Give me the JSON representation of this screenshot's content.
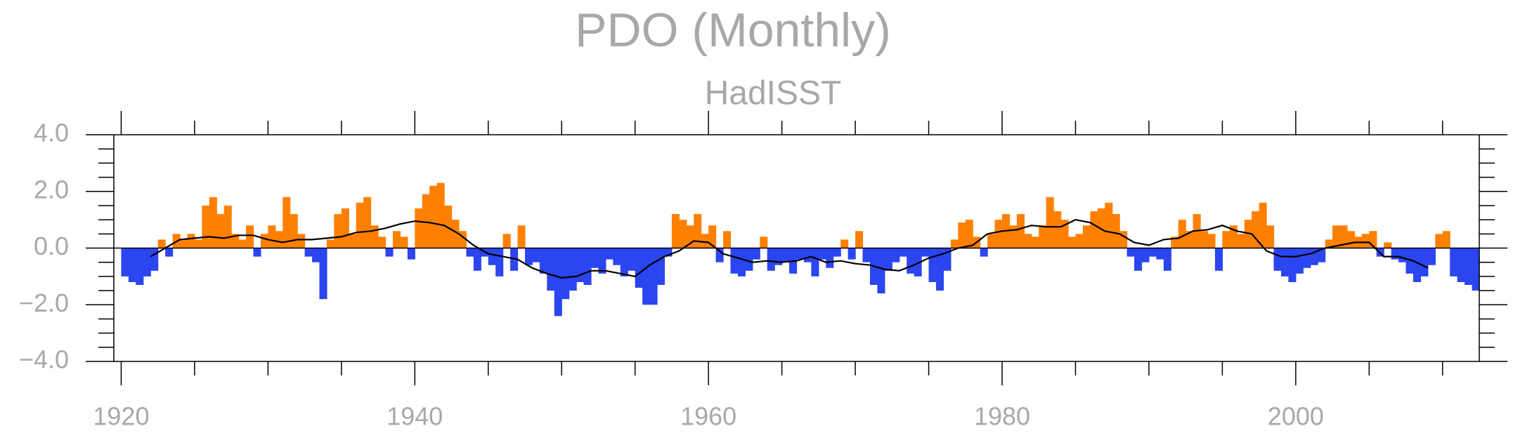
{
  "chart_data": {
    "type": "bar",
    "title": "PDO (Monthly)",
    "subtitle": "HadISST",
    "positive_color": "#ff8000",
    "negative_color": "#2b45f0",
    "xlim": [
      1919.5,
      2012.5
    ],
    "ylim": [
      -4,
      4
    ],
    "xticks": [
      1920,
      1940,
      1960,
      1980,
      2000
    ],
    "xticks_minor": [
      1925,
      1930,
      1935,
      1945,
      1950,
      1955,
      1965,
      1970,
      1975,
      1985,
      1990,
      1995,
      2005,
      2010
    ],
    "yticks": [
      {
        "value": 4,
        "label": "4.0"
      },
      {
        "value": 2,
        "label": "2.0"
      },
      {
        "value": 0,
        "label": "0.0"
      },
      {
        "value": -2,
        "label": "−2.0"
      },
      {
        "value": -4,
        "label": "−4.0"
      }
    ],
    "yticks_minor": [
      -3.5,
      -3,
      -2.5,
      -1.5,
      -1,
      -0.5,
      0.5,
      1,
      1.5,
      2.5,
      3,
      3.5
    ],
    "x": [
      1920,
      1920.5,
      1921,
      1921.5,
      1922,
      1922.5,
      1923,
      1923.5,
      1924,
      1924.5,
      1925,
      1925.5,
      1926,
      1926.5,
      1927,
      1927.5,
      1928,
      1928.5,
      1929,
      1929.5,
      1930,
      1930.5,
      1931,
      1931.5,
      1932,
      1932.5,
      1933,
      1933.5,
      1934,
      1934.5,
      1935,
      1935.5,
      1936,
      1936.5,
      1937,
      1937.5,
      1938,
      1938.5,
      1939,
      1939.5,
      1940,
      1940.5,
      1941,
      1941.5,
      1942,
      1942.5,
      1943,
      1943.5,
      1944,
      1944.5,
      1945,
      1945.5,
      1946,
      1946.5,
      1947,
      1947.5,
      1948,
      1948.5,
      1949,
      1949.5,
      1950,
      1950.5,
      1951,
      1951.5,
      1952,
      1952.5,
      1953,
      1953.5,
      1954,
      1954.5,
      1955,
      1955.5,
      1956,
      1956.5,
      1957,
      1957.5,
      1958,
      1958.5,
      1959,
      1959.5,
      1960,
      1960.5,
      1961,
      1961.5,
      1962,
      1962.5,
      1963,
      1963.5,
      1964,
      1964.5,
      1965,
      1965.5,
      1966,
      1966.5,
      1967,
      1967.5,
      1968,
      1968.5,
      1969,
      1969.5,
      1970,
      1970.5,
      1971,
      1971.5,
      1972,
      1972.5,
      1973,
      1973.5,
      1974,
      1974.5,
      1975,
      1975.5,
      1976,
      1976.5,
      1977,
      1977.5,
      1978,
      1978.5,
      1979,
      1979.5,
      1980,
      1980.5,
      1981,
      1981.5,
      1982,
      1982.5,
      1983,
      1983.5,
      1984,
      1984.5,
      1985,
      1985.5,
      1986,
      1986.5,
      1987,
      1987.5,
      1988,
      1988.5,
      1989,
      1989.5,
      1990,
      1990.5,
      1991,
      1991.5,
      1992,
      1992.5,
      1993,
      1993.5,
      1994,
      1994.5,
      1995,
      1995.5,
      1996,
      1996.5,
      1997,
      1997.5,
      1998,
      1998.5,
      1999,
      1999.5,
      2000,
      2000.5,
      2001,
      2001.5,
      2002,
      2002.5,
      2003,
      2003.5,
      2004,
      2004.5,
      2005,
      2005.5,
      2006,
      2006.5,
      2007,
      2007.5,
      2008,
      2008.5,
      2009,
      2009.5,
      2010,
      2010.5,
      2011,
      2011.5,
      2012
    ],
    "values": [
      -1.0,
      -1.2,
      -1.3,
      -1.0,
      -0.8,
      0.3,
      -0.3,
      0.5,
      0.3,
      0.5,
      0.3,
      1.5,
      1.8,
      1.2,
      1.5,
      0.5,
      0.3,
      0.8,
      -0.3,
      0.5,
      0.8,
      0.6,
      1.8,
      1.2,
      0.5,
      -0.3,
      -0.5,
      -1.8,
      0.3,
      1.2,
      1.4,
      0.5,
      1.6,
      1.8,
      0.8,
      0.4,
      -0.3,
      0.6,
      0.4,
      -0.4,
      1.4,
      1.9,
      2.2,
      2.3,
      1.5,
      1.0,
      0.6,
      -0.3,
      -0.8,
      -0.3,
      -0.6,
      -1.0,
      0.5,
      -0.8,
      0.8,
      -0.6,
      -0.5,
      -0.9,
      -1.5,
      -2.4,
      -1.8,
      -1.5,
      -1.2,
      -1.3,
      -0.7,
      -0.9,
      -0.4,
      -0.6,
      -1.0,
      -0.8,
      -1.4,
      -2.0,
      -2.0,
      -1.3,
      -0.3,
      1.2,
      1.0,
      0.8,
      1.2,
      0.5,
      0.8,
      -0.5,
      0.6,
      -0.9,
      -1.0,
      -0.8,
      -0.4,
      0.4,
      -0.8,
      -0.6,
      -0.5,
      -0.9,
      -0.4,
      -0.5,
      -1.0,
      -0.4,
      -0.7,
      -0.3,
      0.3,
      -0.4,
      0.6,
      -0.5,
      -1.3,
      -1.6,
      -0.8,
      -0.5,
      -0.3,
      -0.9,
      -1.0,
      -0.3,
      -1.2,
      -1.5,
      -0.8,
      0.3,
      0.9,
      1.0,
      0.4,
      -0.3,
      0.5,
      1.0,
      1.2,
      0.8,
      1.2,
      0.5,
      0.4,
      0.8,
      1.8,
      1.3,
      1.0,
      0.4,
      0.5,
      0.8,
      1.3,
      1.4,
      1.6,
      1.2,
      0.6,
      -0.3,
      -0.8,
      -0.5,
      -0.3,
      -0.4,
      -0.8,
      0.4,
      1.0,
      0.6,
      1.2,
      0.6,
      0.5,
      -0.8,
      0.6,
      0.8,
      0.5,
      1.0,
      1.3,
      1.6,
      0.8,
      -0.8,
      -1.0,
      -1.2,
      -0.9,
      -0.7,
      -0.6,
      -0.5,
      0.3,
      0.8,
      0.8,
      0.6,
      0.4,
      0.5,
      0.6,
      -0.3,
      0.2,
      -0.4,
      -0.5,
      -0.9,
      -1.2,
      -1.0,
      -0.6,
      0.5,
      0.6,
      -1.0,
      -1.2,
      -1.3,
      -1.5
    ],
    "line": {
      "type": "line",
      "color": "#000000",
      "x": [
        1922,
        1923,
        1924,
        1925,
        1926,
        1927,
        1928,
        1929,
        1930,
        1931,
        1932,
        1933,
        1934,
        1935,
        1936,
        1937,
        1938,
        1939,
        1940,
        1941,
        1942,
        1943,
        1944,
        1945,
        1946,
        1947,
        1948,
        1949,
        1950,
        1951,
        1952,
        1953,
        1954,
        1955,
        1956,
        1957,
        1958,
        1959,
        1960,
        1961,
        1962,
        1963,
        1964,
        1965,
        1966,
        1967,
        1968,
        1969,
        1970,
        1971,
        1972,
        1973,
        1974,
        1975,
        1976,
        1977,
        1978,
        1979,
        1980,
        1981,
        1982,
        1983,
        1984,
        1985,
        1986,
        1987,
        1988,
        1989,
        1990,
        1991,
        1992,
        1993,
        1994,
        1995,
        1996,
        1997,
        1998,
        1999,
        2000,
        2001,
        2002,
        2003,
        2004,
        2005,
        2006,
        2007,
        2008,
        2009
      ],
      "values": [
        -0.3,
        0.0,
        0.3,
        0.35,
        0.4,
        0.35,
        0.45,
        0.45,
        0.3,
        0.2,
        0.3,
        0.3,
        0.35,
        0.4,
        0.55,
        0.6,
        0.7,
        0.85,
        0.95,
        0.9,
        0.8,
        0.5,
        0.1,
        -0.2,
        -0.3,
        -0.4,
        -0.7,
        -0.9,
        -1.05,
        -1.0,
        -0.8,
        -0.8,
        -0.9,
        -1.0,
        -0.6,
        -0.3,
        -0.1,
        0.25,
        0.2,
        -0.2,
        -0.35,
        -0.5,
        -0.45,
        -0.5,
        -0.45,
        -0.3,
        -0.5,
        -0.45,
        -0.55,
        -0.6,
        -0.75,
        -0.8,
        -0.6,
        -0.35,
        -0.2,
        0.0,
        0.1,
        0.5,
        0.6,
        0.65,
        0.8,
        0.75,
        0.75,
        1.0,
        0.9,
        0.6,
        0.5,
        0.2,
        0.1,
        0.3,
        0.35,
        0.6,
        0.65,
        0.8,
        0.6,
        0.5,
        -0.1,
        -0.3,
        -0.3,
        -0.2,
        0.0,
        0.1,
        0.2,
        0.2,
        -0.3,
        -0.3,
        -0.45,
        -0.7
      ]
    }
  }
}
